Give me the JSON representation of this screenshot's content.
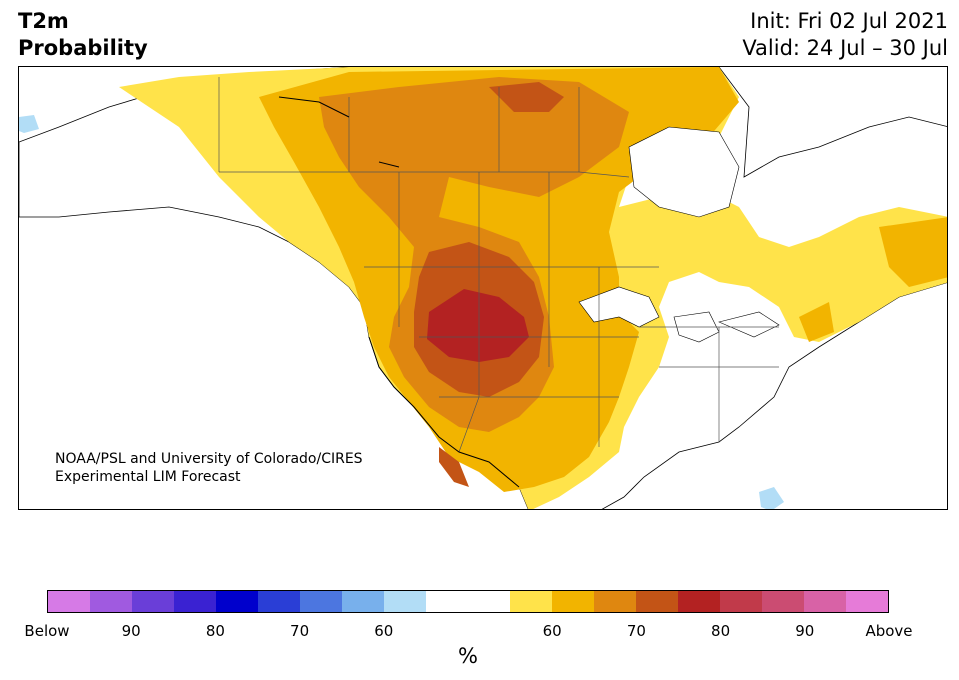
{
  "title": {
    "line1": "T2m",
    "line2": "Probability",
    "init": "Init: Fri 02 Jul 2021",
    "valid": "Valid: 24 Jul – 30 Jul"
  },
  "credit": {
    "line1": "NOAA/PSL and University of Colorado/CIRES",
    "line2": "Experimental LIM Forecast"
  },
  "colorbar": {
    "colors": [
      "#d67ae6",
      "#a05ae0",
      "#6a3ed8",
      "#3a22d2",
      "#0000cc",
      "#2a3ed6",
      "#4c76e0",
      "#78b0ec",
      "#b2ddf6",
      "#ffffff",
      "#ffffff",
      "#ffe34a",
      "#f2b400",
      "#df8710",
      "#c35416",
      "#b32222",
      "#c13a4a",
      "#cb4c72",
      "#d862a6",
      "#e67bd8"
    ],
    "tick_labels": [
      "Below",
      "90",
      "80",
      "70",
      "60",
      "",
      "60",
      "70",
      "80",
      "90",
      "Above"
    ],
    "unit": "%"
  },
  "map": {
    "background": "#ffffff",
    "land_color": "#ffffff",
    "coast_color": "#000000",
    "border_color": "#555555"
  }
}
